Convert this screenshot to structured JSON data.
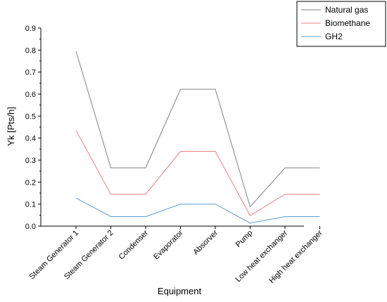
{
  "chart_data": {
    "type": "line",
    "categories": [
      "Steam Generator 1",
      "Steam Generator 2",
      "Condenser",
      "Evaporator",
      "Absorver",
      "Pump",
      "Low heat exchanger",
      "High heat exchanger"
    ],
    "series": [
      {
        "name": "Natural gas",
        "color": "#808080",
        "values": [
          0.795,
          0.265,
          0.265,
          0.622,
          0.622,
          0.088,
          0.265,
          0.265
        ]
      },
      {
        "name": "Biomethane",
        "color": "#ef7f7f",
        "values": [
          0.435,
          0.145,
          0.145,
          0.34,
          0.34,
          0.048,
          0.145,
          0.145
        ]
      },
      {
        "name": "GH2",
        "color": "#5a9bd5",
        "values": [
          0.128,
          0.043,
          0.043,
          0.1,
          0.1,
          0.014,
          0.043,
          0.043
        ]
      }
    ],
    "title": "",
    "xlabel": "Equipment",
    "ylabel": "Yk [Pts/h]",
    "ylim": [
      0,
      0.9
    ],
    "yticks": [
      "0.0",
      "0.1",
      "0.2",
      "0.3",
      "0.4",
      "0.5",
      "0.6",
      "0.7",
      "0.8",
      "0.9"
    ],
    "grid": false,
    "legend": "top-right"
  }
}
